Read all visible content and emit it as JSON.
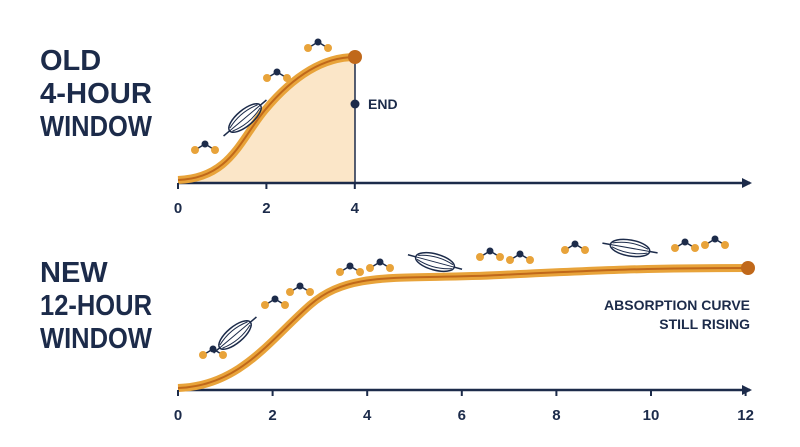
{
  "panels": [
    {
      "title_lines": [
        "OLD",
        "4-HOUR",
        "WINDOW"
      ],
      "ticks": [
        0,
        2,
        4
      ],
      "end_label": "END"
    },
    {
      "title_lines": [
        "NEW",
        "12-HOUR",
        "WINDOW"
      ],
      "ticks": [
        0,
        2,
        4,
        6,
        8,
        10,
        12
      ],
      "note_lines": [
        "ABSORPTION CURVE",
        "STILL RISING"
      ]
    }
  ]
}
